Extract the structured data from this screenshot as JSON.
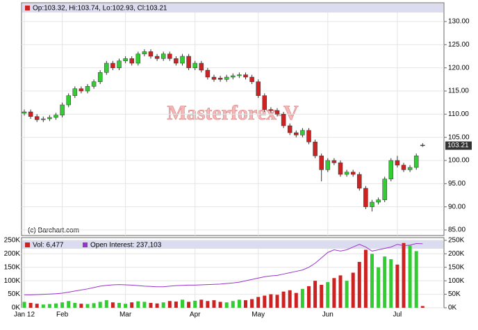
{
  "chart_data": {
    "type": "candlestick",
    "quote_text": "Op:103.32, Hi:103.74, Lo:102.93, Cl:103.21",
    "watermark": "Masterforex-V",
    "source": "(c) Barchart.com",
    "last_price_label": "103.21",
    "volume_text": "Vol: 6,477",
    "open_interest_text": "Open Interest: 237,103",
    "up_color": "#33cc33",
    "down_color": "#cc2222",
    "oi_color": "#9933cc",
    "categories": [
      "Jan 12",
      null,
      null,
      null,
      null,
      null,
      "Feb",
      null,
      null,
      null,
      null,
      null,
      null,
      null,
      null,
      null,
      "Mar",
      null,
      null,
      null,
      null,
      null,
      null,
      null,
      null,
      null,
      null,
      "Apr",
      null,
      null,
      null,
      null,
      null,
      null,
      null,
      null,
      null,
      "May",
      null,
      null,
      null,
      null,
      null,
      null,
      null,
      null,
      null,
      null,
      "Jun",
      null,
      null,
      null,
      null,
      null,
      null,
      null,
      null,
      null,
      null,
      "Jul",
      null,
      null,
      null,
      null
    ],
    "open": [
      110.2,
      110.5,
      109.5,
      108.8,
      109,
      109.3,
      109.8,
      112,
      114,
      115.5,
      115,
      116,
      117,
      119,
      121,
      120,
      121.5,
      122,
      121,
      123,
      123.5,
      122.5,
      122,
      123,
      122,
      121,
      122.5,
      120,
      121,
      119.5,
      118,
      117.8,
      117.5,
      118,
      118.3,
      118.5,
      118,
      117,
      114,
      111,
      110.8,
      110,
      107.5,
      106,
      105.5,
      106.5,
      104,
      101,
      98,
      100,
      99.5,
      97,
      97.5,
      97,
      94,
      90,
      91,
      91.5,
      96,
      100,
      99,
      98,
      98.5,
      103.32
    ],
    "high": [
      111,
      111,
      110,
      109.5,
      109.8,
      110.3,
      112.5,
      114.5,
      116,
      116,
      116.5,
      117.5,
      119.5,
      121.5,
      121.5,
      122,
      122.5,
      122.5,
      123.5,
      124,
      124,
      123,
      123.5,
      123.5,
      122.5,
      123,
      123,
      121.5,
      121.5,
      120,
      118.5,
      118.3,
      118.5,
      118.8,
      119,
      119,
      118.5,
      117.5,
      114.5,
      111.5,
      111.3,
      110.5,
      108,
      106.5,
      107,
      107,
      104.5,
      101.5,
      100.5,
      100.5,
      100,
      98,
      98,
      97.5,
      94.5,
      91.5,
      92,
      96.5,
      100.5,
      101,
      99.5,
      99,
      101.5,
      103.74
    ],
    "low": [
      109.7,
      109,
      108.3,
      108.3,
      108.5,
      108.8,
      109.3,
      111.5,
      113.5,
      114.5,
      114.5,
      115.5,
      116.5,
      118.5,
      119.5,
      119.5,
      121,
      120.5,
      120.5,
      122.5,
      122,
      121.5,
      121.5,
      121.5,
      120.5,
      120.5,
      119.5,
      119.5,
      119,
      117.5,
      117,
      117,
      117,
      117.5,
      117.8,
      117.5,
      116.5,
      113.5,
      110.5,
      110.3,
      109.5,
      107,
      105.5,
      105,
      105,
      103.5,
      100.5,
      95.5,
      97.5,
      99,
      96.5,
      96.5,
      96.5,
      93.5,
      89.5,
      89,
      90.5,
      91,
      95.5,
      98.5,
      97.5,
      97.5,
      98,
      102.93
    ],
    "close": [
      110.5,
      109.5,
      108.8,
      109,
      109.3,
      109.8,
      112,
      114,
      115.5,
      115,
      116,
      117,
      119,
      121,
      120,
      121.5,
      122,
      121,
      123,
      123.5,
      122.5,
      122,
      123,
      122,
      121,
      122.5,
      120,
      121,
      119.5,
      118,
      117.5,
      117.5,
      118,
      118.3,
      118.5,
      118,
      117,
      114,
      111,
      110.8,
      110,
      107.5,
      106,
      105.5,
      106.5,
      104,
      101,
      98,
      100,
      99.5,
      97,
      97.5,
      97,
      94,
      90,
      91,
      91.5,
      96,
      100,
      99,
      98,
      98.5,
      101,
      103.21
    ],
    "volume": [
      22000,
      18000,
      15000,
      12000,
      14000,
      16000,
      20000,
      25000,
      18000,
      15000,
      14000,
      17000,
      22000,
      28000,
      20000,
      18000,
      15000,
      20000,
      24000,
      22000,
      18000,
      16000,
      20000,
      25000,
      23000,
      30000,
      22000,
      26000,
      30000,
      25000,
      28000,
      22000,
      20000,
      25000,
      30000,
      28000,
      32000,
      40000,
      45000,
      50000,
      48000,
      60000,
      65000,
      55000,
      70000,
      80000,
      100000,
      85000,
      95000,
      110000,
      120000,
      100000,
      130000,
      170000,
      215000,
      200000,
      150000,
      190000,
      180000,
      160000,
      240000,
      230000,
      210000,
      6477
    ],
    "open_interest": [
      48000,
      48000,
      49000,
      50000,
      51000,
      52000,
      54000,
      58000,
      62000,
      66000,
      70000,
      75000,
      80000,
      83000,
      85000,
      86000,
      85000,
      84000,
      82000,
      80000,
      79000,
      78000,
      78000,
      80000,
      82000,
      83000,
      84000,
      84000,
      85000,
      86000,
      87000,
      88000,
      90000,
      92000,
      95000,
      100000,
      105000,
      110000,
      115000,
      118000,
      120000,
      125000,
      130000,
      135000,
      140000,
      150000,
      165000,
      185000,
      205000,
      215000,
      210000,
      215000,
      225000,
      235000,
      225000,
      210000,
      215000,
      220000,
      225000,
      235000,
      230000,
      232000,
      238000,
      237103
    ],
    "ylim": [
      83.8,
      134.05
    ],
    "yticks": [
      {
        "value": 85,
        "label": "85.00"
      },
      {
        "value": 90,
        "label": "90.00"
      },
      {
        "value": 95,
        "label": "95.00"
      },
      {
        "value": 100,
        "label": "100.00"
      },
      {
        "value": 105,
        "label": "105.00"
      },
      {
        "value": 110,
        "label": "110.00"
      },
      {
        "value": 115,
        "label": "115.00"
      },
      {
        "value": 120,
        "label": "120.00"
      },
      {
        "value": 125,
        "label": "125.00"
      },
      {
        "value": 130,
        "label": "130.00"
      }
    ],
    "y2lim": [
      0,
      260000
    ],
    "y2ticks": [
      {
        "value": 0,
        "label": "0K"
      },
      {
        "value": 50000,
        "label": "50K"
      },
      {
        "value": 100000,
        "label": "100K"
      },
      {
        "value": 150000,
        "label": "150K"
      },
      {
        "value": 200000,
        "label": "200K"
      },
      {
        "value": 250000,
        "label": "250K"
      }
    ],
    "grid": true
  }
}
